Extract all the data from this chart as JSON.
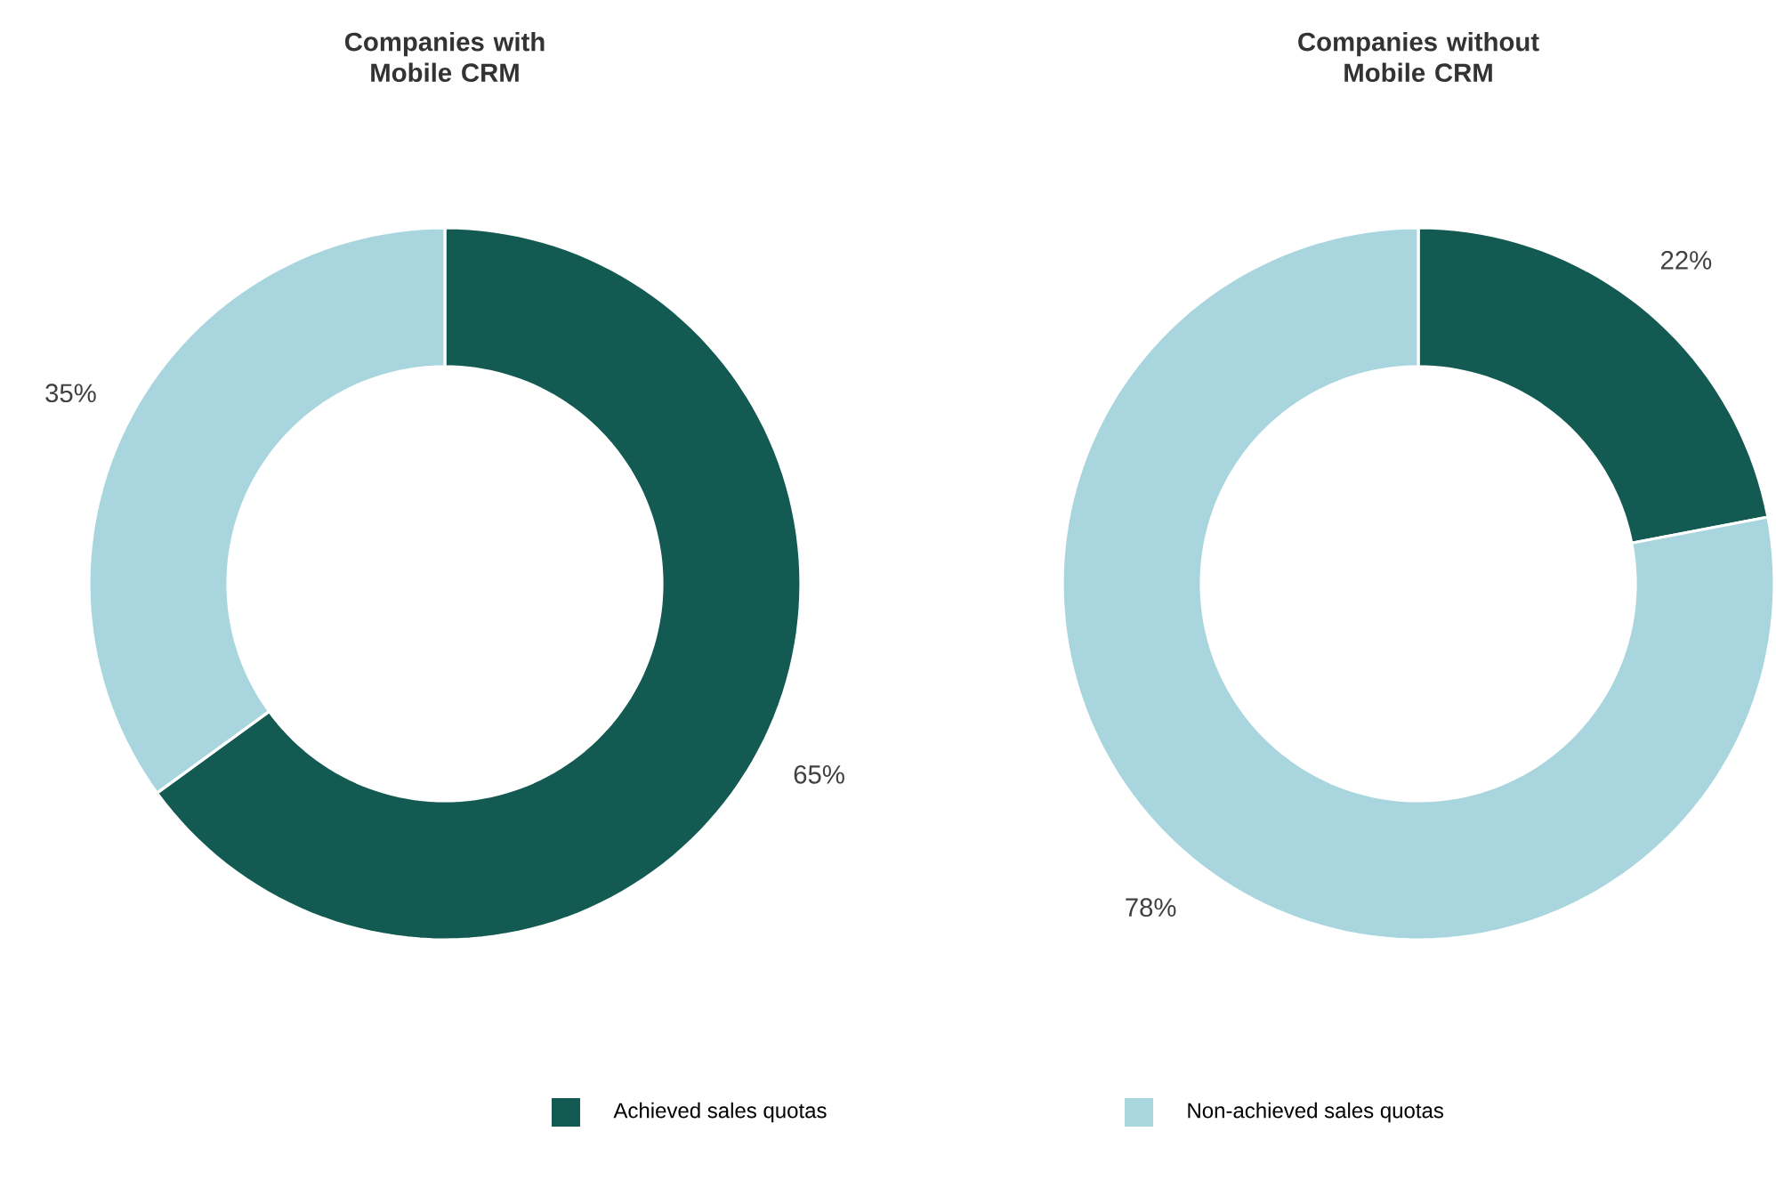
{
  "chart_data": [
    {
      "type": "donut",
      "title": "Companies with Mobile CRM",
      "categories": [
        "Achieved sales quotas",
        "Non-achieved sales quotas"
      ],
      "values": [
        65,
        35
      ],
      "colors": [
        "#135a53",
        "#a9d6de"
      ],
      "value_labels": [
        "65%",
        "35%"
      ],
      "legend": "bottom"
    },
    {
      "type": "donut",
      "title": "Companies without Mobile CRM",
      "values": [
        22,
        78
      ],
      "colors": [
        "#135a53",
        "#a9d6de"
      ],
      "value_labels": [
        "22%",
        "78%"
      ]
    }
  ]
}
